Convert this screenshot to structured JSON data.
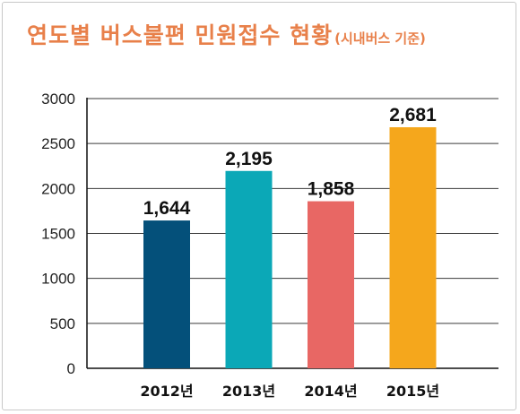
{
  "chart_data": {
    "type": "bar",
    "title": "연도별 버스불편 민원접수 현황",
    "subtitle": "(시내버스 기준)",
    "categories": [
      "2012년",
      "2013년",
      "2014년",
      "2015년"
    ],
    "values": [
      1644,
      2195,
      1858,
      2681
    ],
    "data_labels": [
      "1,644",
      "2,195",
      "1,858",
      "2,681"
    ],
    "colors": [
      "#04507a",
      "#0ba8b7",
      "#e86764",
      "#f5a71c"
    ],
    "ylim": [
      0,
      3000
    ],
    "yticks": [
      0,
      500,
      1000,
      1500,
      2000,
      2500,
      3000
    ],
    "grid": true,
    "xlabel": "",
    "ylabel": ""
  }
}
